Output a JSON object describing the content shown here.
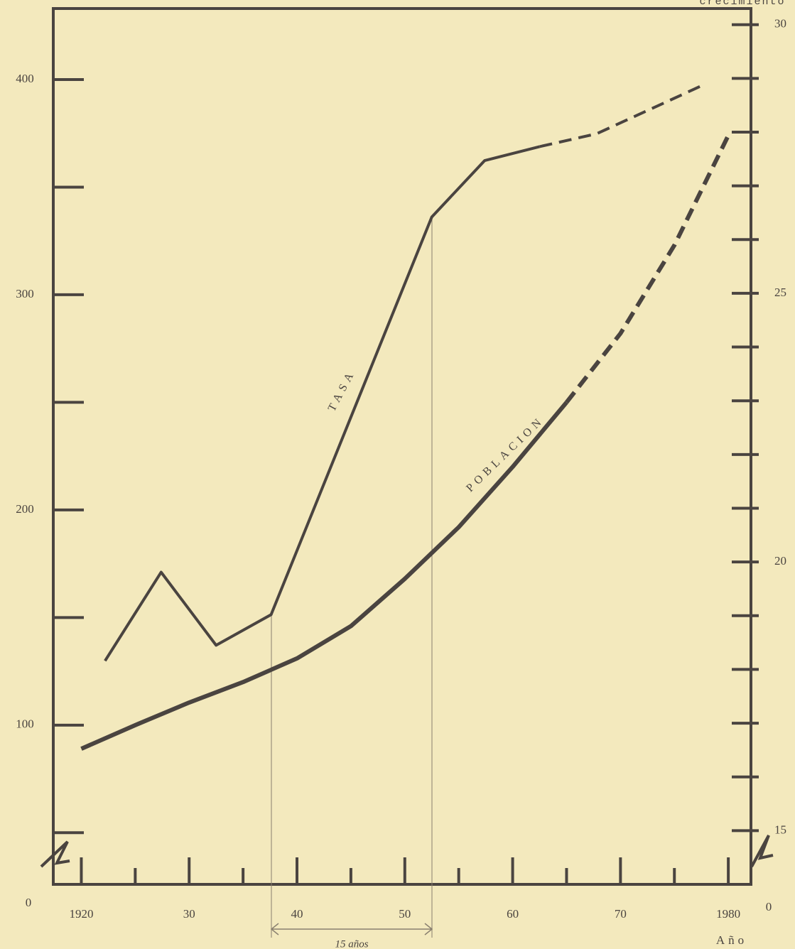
{
  "chart_data": {
    "type": "line",
    "y_axis_label": "crecimiento",
    "x_axis_label": "Año",
    "y_origin_label": "0",
    "y2_origin_label": "0",
    "annotation": "15 años",
    "x": [
      1920,
      1925,
      1930,
      1935,
      1940,
      1945,
      1950,
      1955,
      1960,
      1965,
      1970,
      1975,
      1980
    ],
    "xlim": [
      1917.4,
      1982.1
    ],
    "xticks": [
      {
        "value": 1920,
        "label": "1920"
      },
      {
        "value": 1930,
        "label": "30"
      },
      {
        "value": 1940,
        "label": "40"
      },
      {
        "value": 1950,
        "label": "50"
      },
      {
        "value": 1960,
        "label": "60"
      },
      {
        "value": 1970,
        "label": "70"
      },
      {
        "value": 1980,
        "label": "1980"
      }
    ],
    "xminor_ticks": [
      1925,
      1935,
      1945,
      1955,
      1965,
      1975
    ],
    "ylim": [
      26,
      433
    ],
    "yticks": [
      100,
      200,
      300,
      400
    ],
    "yminor_ticks": [
      50,
      150,
      250,
      350
    ],
    "y2lim": [
      14,
      30.3
    ],
    "y2ticks": [
      15,
      20,
      25,
      30
    ],
    "y2minor_ticks": [
      16,
      17,
      18,
      19,
      21,
      22,
      23,
      24,
      26,
      27,
      28,
      29
    ],
    "series": [
      {
        "name": "POBLACION",
        "color": "#4a4440",
        "dash_from_x": 1965,
        "values": [
          89,
          100,
          110.5,
          120,
          131,
          146,
          168,
          192,
          220,
          250,
          282,
          323,
          374
        ]
      },
      {
        "name": "TASA",
        "color": "#4a4440",
        "axis": "y2",
        "dash_from_x": 1962.5,
        "x": [
          1922.2,
          1927.4,
          1932.5,
          1937.6,
          1952.5,
          1957.4,
          1962.5,
          1967.8,
          1977.6
        ],
        "values": [
          18.16,
          19.81,
          18.45,
          19.02,
          26.42,
          27.47,
          27.73,
          27.97,
          28.87
        ]
      }
    ]
  }
}
